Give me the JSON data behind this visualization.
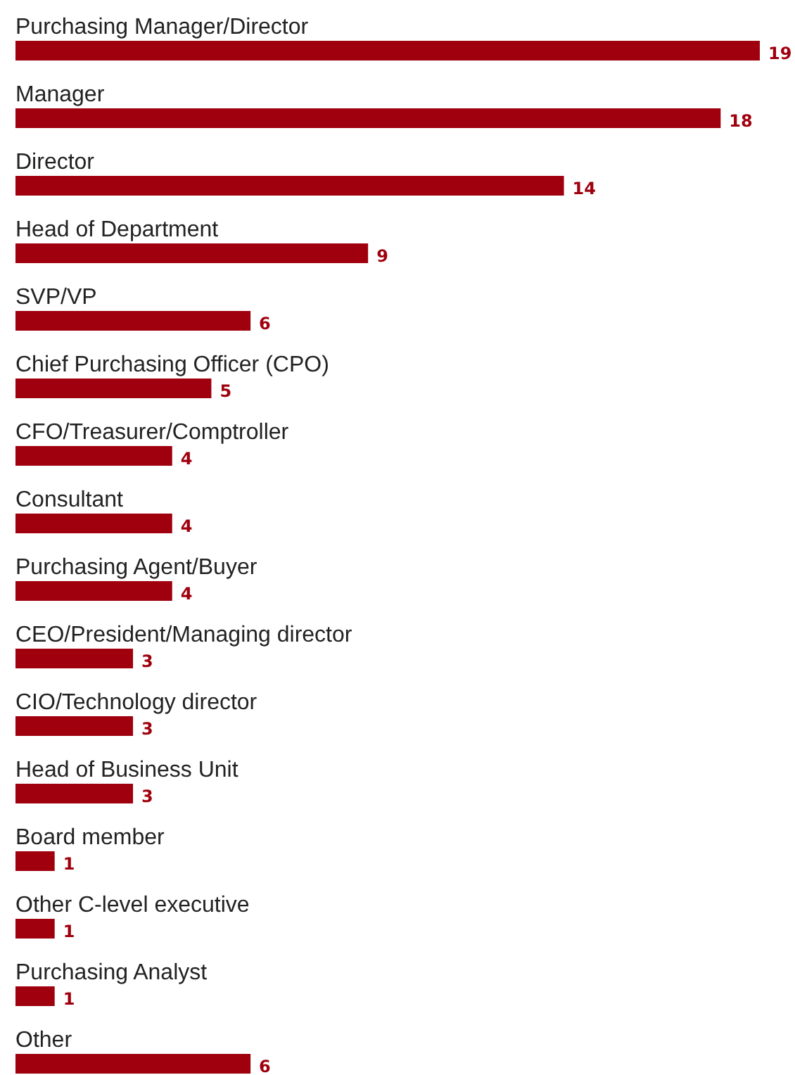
{
  "chart_data": {
    "type": "bar",
    "orientation": "horizontal",
    "xlim": [
      0,
      19
    ],
    "data_labels": true,
    "color": "#a0000e",
    "categories": [
      "Purchasing Manager/Director",
      "Manager",
      "Director",
      "Head of Department",
      "SVP/VP",
      "Chief Purchasing Officer (CPO)",
      "CFO/Treasurer/Comptroller",
      "Consultant",
      "Purchasing Agent/Buyer",
      "CEO/President/Managing director",
      "CIO/Technology director",
      "Head of Business Unit",
      "Board member",
      "Other C-level executive",
      "Purchasing Analyst",
      "Other"
    ],
    "values": [
      19,
      18,
      14,
      9,
      6,
      5,
      4,
      4,
      4,
      3,
      3,
      3,
      1,
      1,
      1,
      6
    ]
  }
}
